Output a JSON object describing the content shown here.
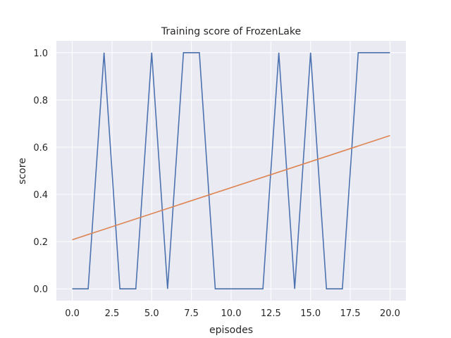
{
  "chart_data": {
    "type": "line",
    "title": "Training score of FrozenLake",
    "xlabel": "episodes",
    "ylabel": "score",
    "xlim": [
      -1,
      21
    ],
    "ylim": [
      -0.05,
      1.05
    ],
    "xticks": [
      0.0,
      2.5,
      5.0,
      7.5,
      10.0,
      12.5,
      15.0,
      17.5,
      20.0
    ],
    "xtick_labels": [
      "0.0",
      "2.5",
      "5.0",
      "7.5",
      "10.0",
      "12.5",
      "15.0",
      "17.5",
      "20.0"
    ],
    "yticks": [
      0.0,
      0.2,
      0.4,
      0.6,
      0.8,
      1.0
    ],
    "ytick_labels": [
      "0.0",
      "0.2",
      "0.4",
      "0.6",
      "0.8",
      "1.0"
    ],
    "grid": true,
    "series": [
      {
        "color": "#4c72b0",
        "x": [
          0,
          1,
          2,
          3,
          4,
          5,
          6,
          7,
          8,
          9,
          10,
          11,
          12,
          13,
          14,
          15,
          16,
          17,
          18,
          19,
          20
        ],
        "y": [
          0,
          0,
          1,
          0,
          0,
          1,
          0,
          1,
          1,
          0,
          0,
          0,
          0,
          1,
          0,
          1,
          0,
          0,
          1,
          1,
          1
        ]
      },
      {
        "color": "#dd8452",
        "x": [
          0,
          20
        ],
        "y": [
          0.208,
          0.649
        ]
      }
    ],
    "background": "#eaeaf2"
  }
}
